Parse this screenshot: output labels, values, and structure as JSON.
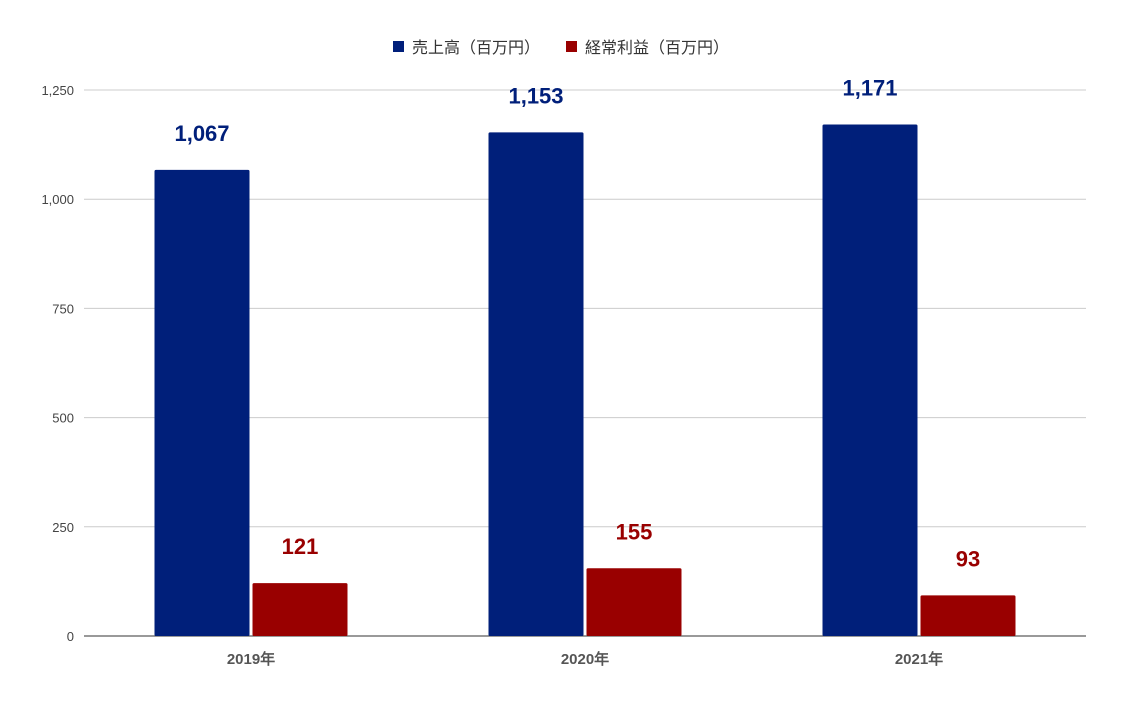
{
  "chart_data": {
    "type": "bar",
    "categories": [
      "2019年",
      "2020年",
      "2021年"
    ],
    "series": [
      {
        "name": "売上高（百万円）",
        "values": [
          1067,
          1153,
          1171
        ],
        "color": "#001f7a",
        "labels": [
          "1,067",
          "1,153",
          "1,171"
        ]
      },
      {
        "name": "経常利益（百万円）",
        "values": [
          121,
          155,
          93
        ],
        "color": "#990000",
        "labels": [
          "121",
          "155",
          "93"
        ]
      }
    ],
    "yticks": [
      "0",
      "250",
      "500",
      "750",
      "1,000",
      "1,250"
    ],
    "ytick_values": [
      0,
      250,
      500,
      750,
      1000,
      1250
    ],
    "ylim": [
      0,
      1250
    ],
    "grid": true,
    "legend_position": "top-center"
  }
}
